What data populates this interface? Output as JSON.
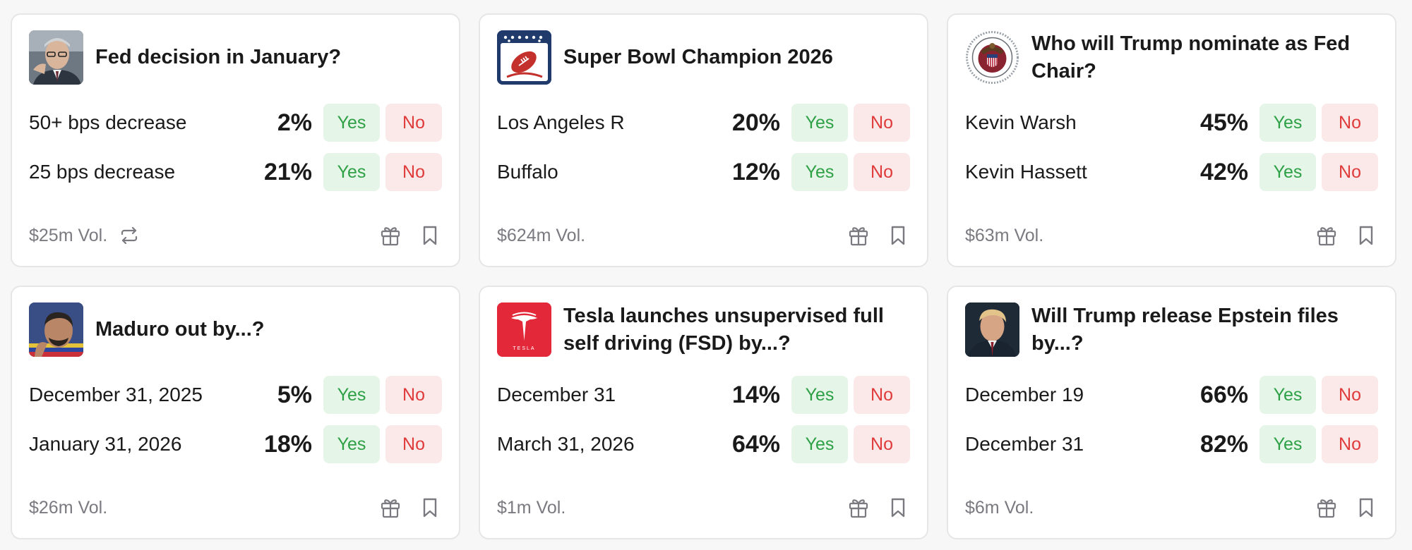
{
  "colors": {
    "yes_bg": "#e5f5e8",
    "yes_text": "#2ea046",
    "no_bg": "#fbe8e8",
    "no_text": "#df3b3b",
    "muted": "#7a7a80"
  },
  "cards": [
    {
      "title": "Fed decision in January?",
      "thumb_icon": "fed-chair-portrait",
      "outcomes": [
        {
          "label": "50+ bps decrease",
          "pct": "2%"
        },
        {
          "label": "25 bps decrease",
          "pct": "21%"
        }
      ],
      "volume": "$25m Vol.",
      "recurring_icon": "repeat-icon"
    },
    {
      "title": "Super Bowl Champion 2026",
      "thumb_icon": "football-logo",
      "outcomes": [
        {
          "label": "Los Angeles R",
          "pct": "20%"
        },
        {
          "label": "Buffalo",
          "pct": "12%"
        }
      ],
      "volume": "$624m Vol."
    },
    {
      "title": "Who will Trump nominate as Fed Chair?",
      "thumb_icon": "federal-reserve-seal",
      "outcomes": [
        {
          "label": "Kevin Warsh",
          "pct": "45%"
        },
        {
          "label": "Kevin Hassett",
          "pct": "42%"
        }
      ],
      "volume": "$63m Vol."
    },
    {
      "title": "Maduro out by...?",
      "thumb_icon": "maduro-portrait",
      "outcomes": [
        {
          "label": "December 31, 2025",
          "pct": "5%"
        },
        {
          "label": "January 31, 2026",
          "pct": "18%"
        }
      ],
      "volume": "$26m Vol."
    },
    {
      "title": "Tesla launches unsupervised full self driving (FSD) by...?",
      "thumb_icon": "tesla-logo",
      "outcomes": [
        {
          "label": "December 31",
          "pct": "14%"
        },
        {
          "label": "March 31, 2026",
          "pct": "64%"
        }
      ],
      "volume": "$1m Vol."
    },
    {
      "title": "Will Trump release Epstein files by...?",
      "thumb_icon": "trump-portrait",
      "outcomes": [
        {
          "label": "December 19",
          "pct": "66%"
        },
        {
          "label": "December 31",
          "pct": "82%"
        }
      ],
      "volume": "$6m Vol."
    }
  ],
  "buttons": {
    "yes": "Yes",
    "no": "No"
  },
  "tesla_logo_text": "TESLA"
}
